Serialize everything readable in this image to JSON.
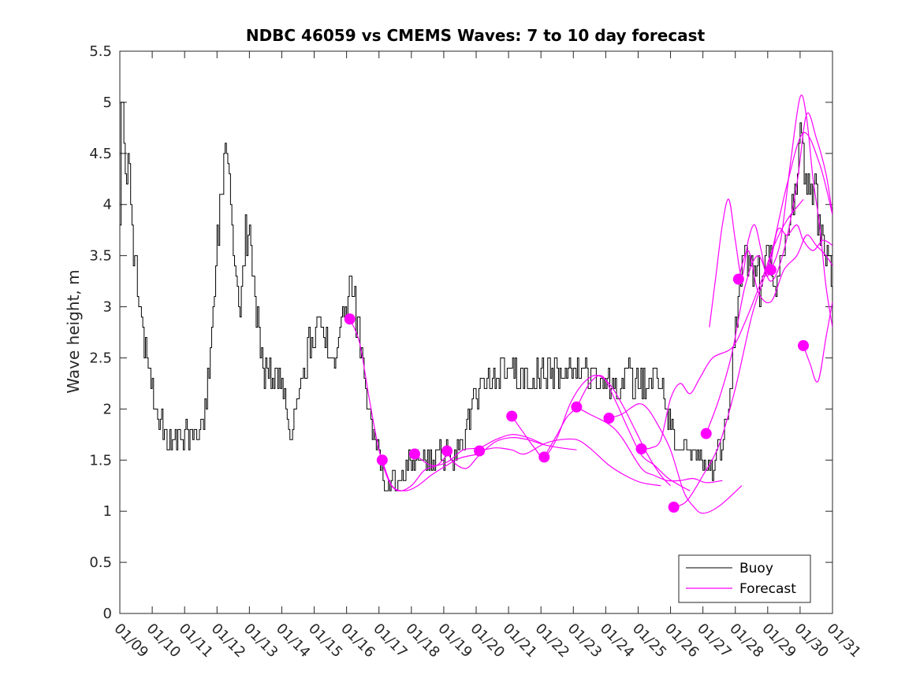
{
  "chart_data": {
    "type": "line",
    "title": "NDBC 46059 vs CMEMS Waves: 7 to 10 day forecast",
    "xlabel": "",
    "ylabel": "Wave height, m",
    "xlim": [
      0,
      22
    ],
    "ylim": [
      0,
      5.5
    ],
    "yticks": [
      0,
      0.5,
      1,
      1.5,
      2,
      2.5,
      3,
      3.5,
      4,
      4.5,
      5,
      5.5
    ],
    "ytick_labels": [
      "0",
      "0.5",
      "1",
      "1.5",
      "2",
      "2.5",
      "3",
      "3.5",
      "4",
      "4.5",
      "5",
      "5.5"
    ],
    "xtick_labels": [
      "01/09",
      "01/10",
      "01/11",
      "01/12",
      "01/13",
      "01/14",
      "01/15",
      "01/16",
      "01/17",
      "01/18",
      "01/19",
      "01/20",
      "01/21",
      "01/22",
      "01/23",
      "01/24",
      "01/25",
      "01/26",
      "01/27",
      "01/28",
      "01/29",
      "01/30",
      "01/31"
    ],
    "grid": false,
    "legend": {
      "position": "bottom-right",
      "entries": [
        "Buoy",
        "Forecast"
      ]
    },
    "colors": {
      "buoy": "#000000",
      "forecast": "#ff00ff",
      "axis": "#262626"
    },
    "buoy_anchors": [
      [
        0.0,
        4.0
      ],
      [
        0.05,
        5.3
      ],
      [
        0.15,
        4.5
      ],
      [
        0.3,
        4.2
      ],
      [
        0.4,
        3.6
      ],
      [
        0.55,
        3.2
      ],
      [
        0.7,
        2.8
      ],
      [
        0.85,
        2.5
      ],
      [
        1.0,
        2.2
      ],
      [
        1.2,
        1.9
      ],
      [
        1.4,
        1.75
      ],
      [
        1.6,
        1.65
      ],
      [
        1.8,
        1.7
      ],
      [
        2.0,
        1.75
      ],
      [
        2.2,
        1.8
      ],
      [
        2.4,
        1.8
      ],
      [
        2.6,
        1.9
      ],
      [
        2.8,
        2.6
      ],
      [
        2.95,
        3.4
      ],
      [
        3.1,
        4.1
      ],
      [
        3.25,
        4.5
      ],
      [
        3.4,
        4.0
      ],
      [
        3.55,
        3.5
      ],
      [
        3.7,
        3.1
      ],
      [
        3.85,
        3.7
      ],
      [
        4.0,
        3.6
      ],
      [
        4.15,
        3.2
      ],
      [
        4.3,
        2.7
      ],
      [
        4.45,
        2.35
      ],
      [
        4.6,
        2.35
      ],
      [
        4.8,
        2.4
      ],
      [
        5.0,
        2.2
      ],
      [
        5.15,
        1.95
      ],
      [
        5.3,
        1.85
      ],
      [
        5.5,
        2.1
      ],
      [
        5.7,
        2.4
      ],
      [
        5.9,
        2.7
      ],
      [
        6.1,
        2.8
      ],
      [
        6.3,
        2.7
      ],
      [
        6.5,
        2.6
      ],
      [
        6.7,
        2.6
      ],
      [
        6.9,
        2.8
      ],
      [
        7.0,
        3.1
      ],
      [
        7.1,
        3.3
      ],
      [
        7.25,
        3.0
      ],
      [
        7.4,
        2.7
      ],
      [
        7.55,
        2.3
      ],
      [
        7.7,
        1.95
      ],
      [
        7.85,
        1.65
      ],
      [
        8.0,
        1.5
      ],
      [
        8.15,
        1.35
      ],
      [
        8.3,
        1.25
      ],
      [
        8.5,
        1.25
      ],
      [
        8.7,
        1.35
      ],
      [
        8.9,
        1.45
      ],
      [
        9.1,
        1.55
      ],
      [
        9.3,
        1.55
      ],
      [
        9.5,
        1.5
      ],
      [
        9.7,
        1.5
      ],
      [
        9.9,
        1.55
      ],
      [
        10.1,
        1.6
      ],
      [
        10.3,
        1.55
      ],
      [
        10.5,
        1.6
      ],
      [
        10.7,
        1.8
      ],
      [
        10.9,
        2.05
      ],
      [
        11.1,
        2.2
      ],
      [
        11.3,
        2.25
      ],
      [
        11.5,
        2.35
      ],
      [
        11.7,
        2.3
      ],
      [
        11.9,
        2.4
      ],
      [
        12.1,
        2.3
      ],
      [
        12.3,
        2.35
      ],
      [
        12.5,
        2.3
      ],
      [
        12.7,
        2.3
      ],
      [
        12.9,
        2.35
      ],
      [
        13.1,
        2.4
      ],
      [
        13.3,
        2.35
      ],
      [
        13.5,
        2.4
      ],
      [
        13.7,
        2.35
      ],
      [
        13.9,
        2.4
      ],
      [
        14.1,
        2.35
      ],
      [
        14.3,
        2.3
      ],
      [
        14.5,
        2.35
      ],
      [
        14.7,
        2.25
      ],
      [
        14.9,
        2.25
      ],
      [
        15.1,
        2.25
      ],
      [
        15.3,
        2.25
      ],
      [
        15.5,
        2.25
      ],
      [
        15.7,
        2.3
      ],
      [
        15.9,
        2.25
      ],
      [
        16.1,
        2.25
      ],
      [
        16.3,
        2.25
      ],
      [
        16.5,
        2.3
      ],
      [
        16.7,
        2.3
      ],
      [
        16.85,
        2.0
      ],
      [
        17.0,
        1.75
      ],
      [
        17.2,
        1.55
      ],
      [
        17.4,
        1.6
      ],
      [
        17.6,
        1.55
      ],
      [
        17.8,
        1.55
      ],
      [
        18.0,
        1.5
      ],
      [
        18.1,
        1.4
      ],
      [
        18.3,
        1.45
      ],
      [
        18.5,
        1.6
      ],
      [
        18.7,
        1.9
      ],
      [
        18.85,
        2.3
      ],
      [
        19.0,
        2.8
      ],
      [
        19.15,
        3.3
      ],
      [
        19.3,
        3.5
      ],
      [
        19.5,
        3.4
      ],
      [
        19.7,
        3.3
      ],
      [
        19.8,
        3.1
      ],
      [
        19.9,
        3.4
      ],
      [
        20.1,
        3.5
      ],
      [
        20.3,
        3.2
      ],
      [
        20.5,
        3.5
      ],
      [
        20.7,
        3.8
      ],
      [
        20.85,
        4.3
      ],
      [
        21.0,
        4.6
      ],
      [
        21.15,
        4.3
      ],
      [
        21.3,
        4.2
      ],
      [
        21.45,
        4.1
      ],
      [
        21.6,
        3.8
      ],
      [
        21.75,
        3.6
      ],
      [
        21.9,
        3.4
      ],
      [
        22.0,
        3.1
      ]
    ],
    "buoy_noise": 0.18,
    "forecast_series": [
      {
        "name": "Forecast",
        "points": [
          [
            7.1,
            2.88
          ],
          [
            7.4,
            2.65
          ],
          [
            7.7,
            2.1
          ],
          [
            8.0,
            1.6
          ],
          [
            8.3,
            1.3
          ],
          [
            8.6,
            1.2
          ],
          [
            9.0,
            1.25
          ],
          [
            9.4,
            1.4
          ],
          [
            9.8,
            1.45
          ],
          [
            10.1,
            1.55
          ]
        ]
      },
      {
        "name": "Forecast",
        "points": [
          [
            8.1,
            1.5
          ],
          [
            8.4,
            1.25
          ],
          [
            8.8,
            1.2
          ],
          [
            9.2,
            1.25
          ],
          [
            9.6,
            1.35
          ],
          [
            10.1,
            1.45
          ],
          [
            10.5,
            1.52
          ],
          [
            11.1,
            1.56
          ]
        ]
      },
      {
        "name": "Forecast",
        "points": [
          [
            9.1,
            1.56
          ],
          [
            9.6,
            1.45
          ],
          [
            10.1,
            1.48
          ],
          [
            10.6,
            1.6
          ],
          [
            11.1,
            1.62
          ],
          [
            11.6,
            1.7
          ],
          [
            12.1,
            1.75
          ],
          [
            12.6,
            1.72
          ],
          [
            13.1,
            1.65
          ]
        ]
      },
      {
        "name": "Forecast",
        "points": [
          [
            10.1,
            1.59
          ],
          [
            10.3,
            1.48
          ],
          [
            10.7,
            1.42
          ],
          [
            11.1,
            1.55
          ],
          [
            11.6,
            1.68
          ],
          [
            12.1,
            1.72
          ],
          [
            12.6,
            1.7
          ],
          [
            13.1,
            1.65
          ],
          [
            13.6,
            1.62
          ],
          [
            14.1,
            1.6
          ]
        ]
      },
      {
        "name": "Forecast",
        "points": [
          [
            11.1,
            1.59
          ],
          [
            11.6,
            1.62
          ],
          [
            12.1,
            1.6
          ],
          [
            12.5,
            1.56
          ],
          [
            13.1,
            1.66
          ],
          [
            13.6,
            1.7
          ],
          [
            14.1,
            1.7
          ],
          [
            14.5,
            1.62
          ],
          [
            15.1,
            1.45
          ],
          [
            15.6,
            1.35
          ],
          [
            16.1,
            1.28
          ],
          [
            16.7,
            1.25
          ]
        ]
      },
      {
        "name": "Forecast",
        "points": [
          [
            12.1,
            1.93
          ],
          [
            12.5,
            1.75
          ],
          [
            12.8,
            1.62
          ],
          [
            13.1,
            1.53
          ],
          [
            13.5,
            1.72
          ],
          [
            13.9,
            2.05
          ],
          [
            14.3,
            2.25
          ],
          [
            14.7,
            2.33
          ],
          [
            15.1,
            2.25
          ],
          [
            15.5,
            2.05
          ],
          [
            15.9,
            1.8
          ],
          [
            16.3,
            1.55
          ],
          [
            16.7,
            1.35
          ],
          [
            17.0,
            1.25
          ]
        ]
      },
      {
        "name": "Forecast",
        "points": [
          [
            13.1,
            1.53
          ],
          [
            13.5,
            1.75
          ],
          [
            13.8,
            1.92
          ],
          [
            14.1,
            2.02
          ],
          [
            14.5,
            2.25
          ],
          [
            14.9,
            2.32
          ],
          [
            15.3,
            2.08
          ],
          [
            15.7,
            1.8
          ],
          [
            16.1,
            1.55
          ],
          [
            16.5,
            1.45
          ],
          [
            16.9,
            1.33
          ],
          [
            17.3,
            1.25
          ],
          [
            17.6,
            1.2
          ]
        ]
      },
      {
        "name": "Forecast",
        "points": [
          [
            14.1,
            2.02
          ],
          [
            14.5,
            1.95
          ],
          [
            15.1,
            1.85
          ],
          [
            15.5,
            1.72
          ],
          [
            16.1,
            1.42
          ],
          [
            16.5,
            1.35
          ],
          [
            16.9,
            1.3
          ],
          [
            17.3,
            1.3
          ],
          [
            17.7,
            1.32
          ],
          [
            18.1,
            1.28
          ],
          [
            18.6,
            1.3
          ]
        ]
      },
      {
        "name": "Forecast",
        "points": [
          [
            15.1,
            1.91
          ],
          [
            15.5,
            1.95
          ],
          [
            16.0,
            2.05
          ],
          [
            16.3,
            2.0
          ],
          [
            16.6,
            1.85
          ],
          [
            17.0,
            1.6
          ],
          [
            17.4,
            1.2
          ],
          [
            17.7,
            1.05
          ],
          [
            18.0,
            0.98
          ],
          [
            18.5,
            1.05
          ],
          [
            19.2,
            1.25
          ]
        ]
      },
      {
        "name": "Forecast",
        "points": [
          [
            16.1,
            1.61
          ],
          [
            16.4,
            1.62
          ],
          [
            16.7,
            1.7
          ],
          [
            17.0,
            2.1
          ],
          [
            17.3,
            2.25
          ],
          [
            17.6,
            2.15
          ],
          [
            17.9,
            2.3
          ],
          [
            18.3,
            2.5
          ],
          [
            18.9,
            2.6
          ],
          [
            19.3,
            2.85
          ],
          [
            19.8,
            3.25
          ],
          [
            20.2,
            3.6
          ],
          [
            20.6,
            3.85
          ],
          [
            21.1,
            4.05
          ]
        ]
      },
      {
        "name": "Forecast",
        "points": [
          [
            17.1,
            1.04
          ],
          [
            17.5,
            1.1
          ],
          [
            18.0,
            1.35
          ],
          [
            18.5,
            1.65
          ],
          [
            19.0,
            2.2
          ],
          [
            19.5,
            2.9
          ],
          [
            19.8,
            3.2
          ],
          [
            20.1,
            3.5
          ],
          [
            20.6,
            4.2
          ],
          [
            21.1,
            4.7
          ],
          [
            21.6,
            4.4
          ],
          [
            22.0,
            3.9
          ]
        ]
      },
      {
        "name": "Forecast",
        "points": [
          [
            18.1,
            1.76
          ],
          [
            18.5,
            2.1
          ],
          [
            18.9,
            2.55
          ],
          [
            19.3,
            3.2
          ],
          [
            19.7,
            3.5
          ],
          [
            20.1,
            3.25
          ],
          [
            20.5,
            3.55
          ],
          [
            20.9,
            4.2
          ],
          [
            21.2,
            4.88
          ],
          [
            21.5,
            4.65
          ],
          [
            21.8,
            4.3
          ],
          [
            22.0,
            3.9
          ]
        ]
      },
      {
        "name": "Forecast",
        "points": [
          [
            19.1,
            3.27
          ],
          [
            19.4,
            3.55
          ],
          [
            19.7,
            3.15
          ],
          [
            20.1,
            3.05
          ],
          [
            20.5,
            3.36
          ],
          [
            20.9,
            3.5
          ],
          [
            21.2,
            3.7
          ],
          [
            21.5,
            3.6
          ],
          [
            21.8,
            3.5
          ],
          [
            22.0,
            3.4
          ]
        ]
      },
      {
        "name": "Forecast",
        "points": [
          [
            20.1,
            3.36
          ],
          [
            20.4,
            3.65
          ],
          [
            20.7,
            4.4
          ],
          [
            21.0,
            5.05
          ],
          [
            21.2,
            4.85
          ],
          [
            21.4,
            4.25
          ],
          [
            21.6,
            3.8
          ],
          [
            21.8,
            3.2
          ],
          [
            22.0,
            2.8
          ]
        ]
      },
      {
        "name": "Forecast",
        "points": [
          [
            18.2,
            2.8
          ],
          [
            18.4,
            3.3
          ],
          [
            18.6,
            3.8
          ],
          [
            18.8,
            4.05
          ],
          [
            19.0,
            3.65
          ],
          [
            19.2,
            3.3
          ],
          [
            19.4,
            3.65
          ],
          [
            19.6,
            3.8
          ],
          [
            19.8,
            3.55
          ],
          [
            20.0,
            3.3
          ],
          [
            20.3,
            3.75
          ],
          [
            20.6,
            3.7
          ],
          [
            20.9,
            3.8
          ],
          [
            21.1,
            3.65
          ],
          [
            21.4,
            3.55
          ],
          [
            21.7,
            3.65
          ],
          [
            22.0,
            3.6
          ]
        ]
      },
      {
        "name": "Forecast",
        "points": [
          [
            21.1,
            2.62
          ],
          [
            21.3,
            2.45
          ],
          [
            21.55,
            2.27
          ],
          [
            21.8,
            2.7
          ],
          [
            22.0,
            3.05
          ]
        ]
      }
    ],
    "forecast_markers": [
      [
        7.1,
        2.88
      ],
      [
        8.1,
        1.5
      ],
      [
        9.1,
        1.56
      ],
      [
        10.1,
        1.59
      ],
      [
        11.1,
        1.59
      ],
      [
        12.1,
        1.93
      ],
      [
        13.1,
        1.53
      ],
      [
        14.1,
        2.02
      ],
      [
        15.1,
        1.91
      ],
      [
        16.1,
        1.61
      ],
      [
        17.1,
        1.04
      ],
      [
        18.1,
        1.76
      ],
      [
        19.1,
        3.27
      ],
      [
        20.1,
        3.36
      ],
      [
        21.1,
        2.62
      ]
    ]
  }
}
